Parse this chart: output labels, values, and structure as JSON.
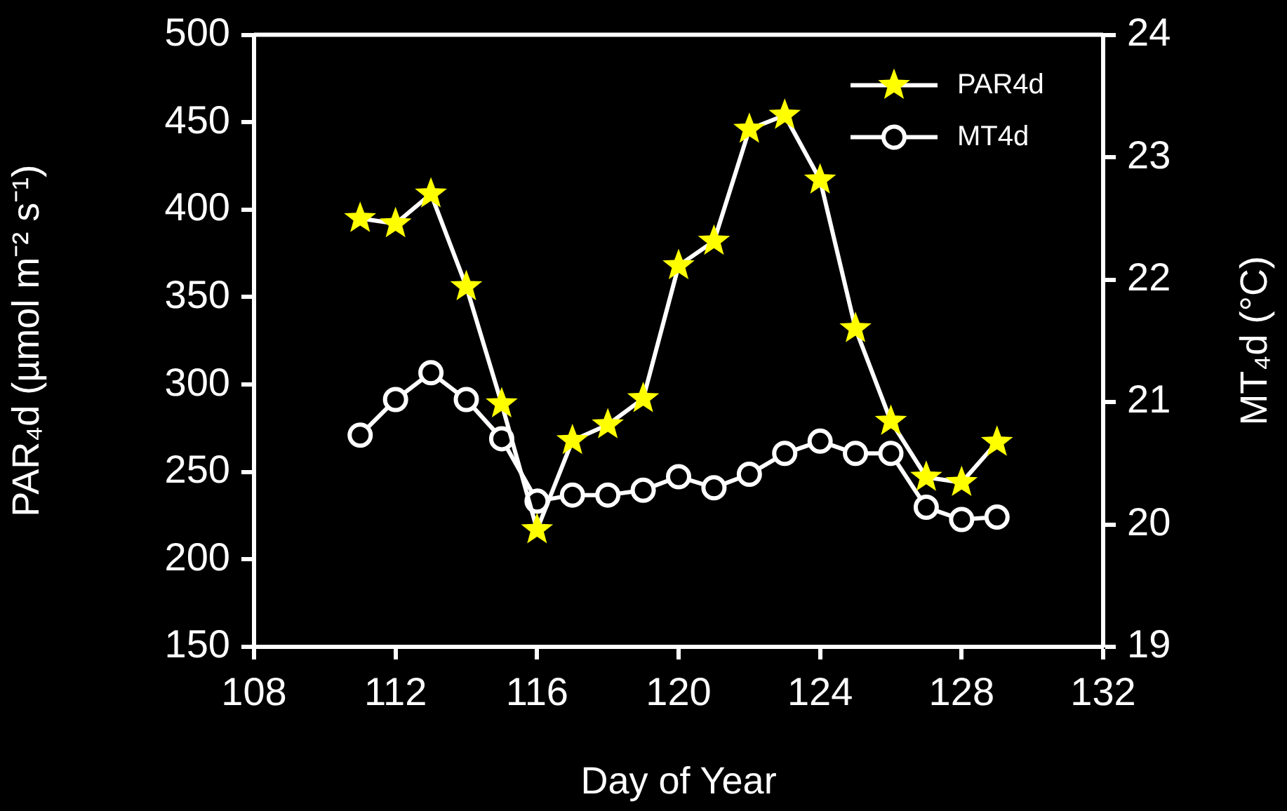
{
  "chart_data": {
    "type": "line",
    "xlabel": "Day of Year",
    "ylabel": "PAR₄d (µmol m⁻² s⁻¹)",
    "y2label": "MT₄d (°C)",
    "x": [
      111,
      112,
      113,
      114,
      115,
      116,
      117,
      118,
      119,
      120,
      121,
      122,
      123,
      124,
      125,
      126,
      127,
      128,
      129
    ],
    "xlim": [
      108,
      132
    ],
    "xticks": [
      108,
      112,
      116,
      120,
      124,
      128,
      132
    ],
    "ylim": [
      150,
      500
    ],
    "yticks": [
      150,
      200,
      250,
      300,
      350,
      400,
      450,
      500
    ],
    "y2lim": [
      19,
      24
    ],
    "y2ticks": [
      19,
      20,
      21,
      22,
      23,
      24
    ],
    "series": [
      {
        "name": "PAR4d",
        "color": "#ffff00",
        "marker": "star",
        "values": [
          395,
          392,
          409,
          356,
          289,
          217,
          268,
          277,
          292,
          368,
          382,
          446,
          454,
          417,
          332,
          279,
          247,
          244,
          267
        ]
      },
      {
        "name": "MT4d",
        "color": "#ffffff",
        "marker": "circle",
        "axis": "y2",
        "values": [
          20.73,
          21.02,
          21.24,
          21.02,
          20.7,
          20.19,
          20.24,
          20.24,
          20.28,
          20.39,
          20.3,
          20.41,
          20.58,
          20.68,
          20.58,
          20.58,
          20.14,
          20.04,
          20.06
        ]
      }
    ],
    "grid": false,
    "legend": "top right",
    "line_style": "solid"
  }
}
